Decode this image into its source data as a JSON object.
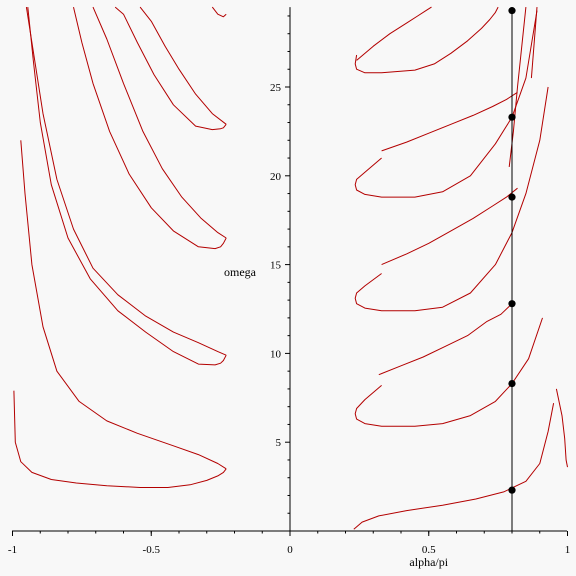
{
  "chart_data": {
    "type": "line",
    "xlabel": "alpha/pi",
    "ylabel": "omega",
    "xlim": [
      -1,
      1
    ],
    "ylim": [
      0,
      29.5
    ],
    "xticks": [
      -1,
      -0.5,
      0,
      0.5,
      1
    ],
    "xtick_labels": [
      "-1",
      "-0.5",
      "0",
      "0.5",
      "1"
    ],
    "yticks": [
      5,
      10,
      15,
      20,
      25
    ],
    "ytick_labels": [
      "5",
      "10",
      "15",
      "20",
      "25"
    ],
    "grid": false,
    "colors": {
      "curve": "#b30000",
      "marker": "#000000",
      "background": "#f8f8f8"
    },
    "vertical_line_x": 0.8,
    "points": [
      {
        "x": 0.8,
        "y": 2.3
      },
      {
        "x": 0.8,
        "y": 8.3
      },
      {
        "x": 0.8,
        "y": 12.8
      },
      {
        "x": 0.8,
        "y": 18.8
      },
      {
        "x": 0.8,
        "y": 23.3
      },
      {
        "x": 0.8,
        "y": 29.3
      }
    ],
    "series": [
      {
        "x": [
          0.23,
          0.26,
          0.32,
          0.42,
          0.55,
          0.67,
          0.77,
          0.85,
          0.9,
          0.93,
          0.95
        ],
        "y": [
          0.1,
          0.5,
          0.85,
          1.15,
          1.45,
          1.8,
          2.2,
          2.8,
          3.8,
          5.6,
          7.2
        ]
      },
      {
        "x": [
          0.96,
          0.98,
          0.99,
          0.995,
          1.0
        ],
        "y": [
          8.0,
          6.5,
          5.2,
          4.0,
          3.6
        ]
      },
      {
        "x": [
          0.33,
          0.27,
          0.24,
          0.235,
          0.24,
          0.27,
          0.33,
          0.45,
          0.55,
          0.65,
          0.74,
          0.8,
          0.86,
          0.91
        ],
        "y": [
          8.2,
          7.4,
          6.9,
          6.6,
          6.3,
          6.05,
          5.9,
          5.9,
          6.05,
          6.5,
          7.3,
          8.3,
          9.7,
          12.0
        ]
      },
      {
        "x": [
          0.32,
          0.4,
          0.48,
          0.56,
          0.64,
          0.71,
          0.76,
          0.8
        ],
        "y": [
          8.8,
          9.3,
          9.8,
          10.4,
          11.0,
          11.8,
          12.2,
          12.8
        ]
      },
      {
        "x": [
          0.33,
          0.27,
          0.24,
          0.235,
          0.24,
          0.27,
          0.33,
          0.45,
          0.55,
          0.65,
          0.74,
          0.8,
          0.85,
          0.9,
          0.93
        ],
        "y": [
          14.5,
          13.8,
          13.4,
          13.1,
          12.8,
          12.55,
          12.4,
          12.4,
          12.6,
          13.4,
          15.0,
          16.8,
          19.0,
          22.0,
          25.0
        ]
      },
      {
        "x": [
          0.33,
          0.42,
          0.5,
          0.58,
          0.66,
          0.73,
          0.78,
          0.82
        ],
        "y": [
          15.0,
          15.6,
          16.2,
          16.9,
          17.6,
          18.3,
          18.8,
          19.3
        ]
      },
      {
        "x": [
          0.33,
          0.27,
          0.24,
          0.235,
          0.24,
          0.27,
          0.33,
          0.45,
          0.55,
          0.65,
          0.74,
          0.8,
          0.85,
          0.89
        ],
        "y": [
          21.0,
          20.2,
          19.8,
          19.5,
          19.2,
          18.95,
          18.8,
          18.8,
          19.1,
          20.0,
          21.8,
          23.3,
          25.5,
          29.3
        ]
      },
      {
        "x": [
          0.33,
          0.42,
          0.5,
          0.58,
          0.66,
          0.73,
          0.78,
          0.82
        ],
        "y": [
          21.4,
          21.9,
          22.4,
          22.9,
          23.4,
          23.9,
          24.3,
          24.7
        ]
      },
      {
        "x": [
          0.24,
          0.235,
          0.24,
          0.27,
          0.33,
          0.45,
          0.52,
          0.58,
          0.64,
          0.69,
          0.72,
          0.74,
          0.75
        ],
        "y": [
          26.8,
          26.3,
          26.0,
          25.8,
          25.8,
          25.95,
          26.3,
          26.9,
          27.6,
          28.3,
          28.8,
          29.2,
          29.5
        ]
      },
      {
        "x": [
          0.24,
          0.3,
          0.36,
          0.42,
          0.46,
          0.49,
          0.51
        ],
        "y": [
          26.5,
          27.3,
          28.0,
          28.6,
          29.0,
          29.3,
          29.5
        ]
      },
      {
        "x": [
          0.79,
          0.805,
          0.82,
          0.83,
          0.84,
          0.85
        ],
        "y": [
          20.5,
          22.5,
          25.0,
          26.5,
          28.0,
          29.5
        ]
      },
      {
        "x": [
          0.87,
          0.88,
          0.89
        ],
        "y": [
          25.5,
          27.5,
          29.5
        ]
      },
      {
        "x": [
          -0.995,
          -0.99,
          -0.97,
          -0.93,
          -0.86,
          -0.77,
          -0.66,
          -0.54,
          -0.44,
          -0.36,
          -0.3,
          -0.26,
          -0.24,
          -0.23
        ],
        "y": [
          7.9,
          5.0,
          3.9,
          3.3,
          2.9,
          2.7,
          2.55,
          2.45,
          2.45,
          2.6,
          2.85,
          3.1,
          3.3,
          3.5
        ]
      },
      {
        "x": [
          -0.23,
          -0.26,
          -0.33,
          -0.42,
          -0.55,
          -0.66,
          -0.76,
          -0.84,
          -0.89,
          -0.93,
          -0.955,
          -0.97
        ],
        "y": [
          3.5,
          3.8,
          4.3,
          4.8,
          5.5,
          6.2,
          7.3,
          9.0,
          11.5,
          15.0,
          19.0,
          22.0
        ]
      },
      {
        "x": [
          -0.23,
          -0.24,
          -0.25,
          -0.27,
          -0.33,
          -0.42,
          -0.52,
          -0.62,
          -0.72,
          -0.8,
          -0.86,
          -0.9,
          -0.925,
          -0.945
        ],
        "y": [
          9.9,
          9.6,
          9.45,
          9.35,
          9.4,
          10.1,
          11.2,
          12.4,
          14.2,
          16.5,
          19.5,
          23.0,
          26.5,
          29.5
        ]
      },
      {
        "x": [
          -0.23,
          -0.26,
          -0.33,
          -0.42,
          -0.52,
          -0.62,
          -0.71,
          -0.78,
          -0.84,
          -0.89,
          -0.925,
          -0.95
        ],
        "y": [
          9.9,
          10.1,
          10.6,
          11.2,
          12.1,
          13.3,
          14.8,
          17.0,
          19.8,
          23.5,
          27.0,
          29.5
        ]
      },
      {
        "x": [
          -0.23,
          -0.24,
          -0.25,
          -0.27,
          -0.33,
          -0.42,
          -0.5,
          -0.58,
          -0.65,
          -0.71,
          -0.75,
          -0.78
        ],
        "y": [
          16.5,
          16.2,
          16.0,
          15.9,
          16.0,
          16.9,
          18.2,
          20.1,
          22.5,
          25.2,
          27.5,
          29.5
        ]
      },
      {
        "x": [
          -0.23,
          -0.26,
          -0.32,
          -0.39,
          -0.46,
          -0.53,
          -0.6,
          -0.66,
          -0.71
        ],
        "y": [
          16.5,
          16.8,
          17.6,
          18.8,
          20.4,
          22.5,
          25.2,
          27.7,
          29.5
        ]
      },
      {
        "x": [
          -0.23,
          -0.24,
          -0.25,
          -0.28,
          -0.34,
          -0.42,
          -0.49,
          -0.55,
          -0.6,
          -0.63
        ],
        "y": [
          22.9,
          22.7,
          22.65,
          22.6,
          22.8,
          24.0,
          25.7,
          27.5,
          29.1,
          29.5
        ]
      },
      {
        "x": [
          -0.23,
          -0.28,
          -0.34,
          -0.4,
          -0.45,
          -0.5,
          -0.54
        ],
        "y": [
          22.9,
          23.5,
          24.6,
          26.0,
          27.3,
          28.7,
          29.5
        ]
      },
      {
        "x": [
          -0.23,
          -0.24,
          -0.26,
          -0.28
        ],
        "y": [
          29.1,
          28.95,
          29.1,
          29.5
        ]
      }
    ]
  }
}
